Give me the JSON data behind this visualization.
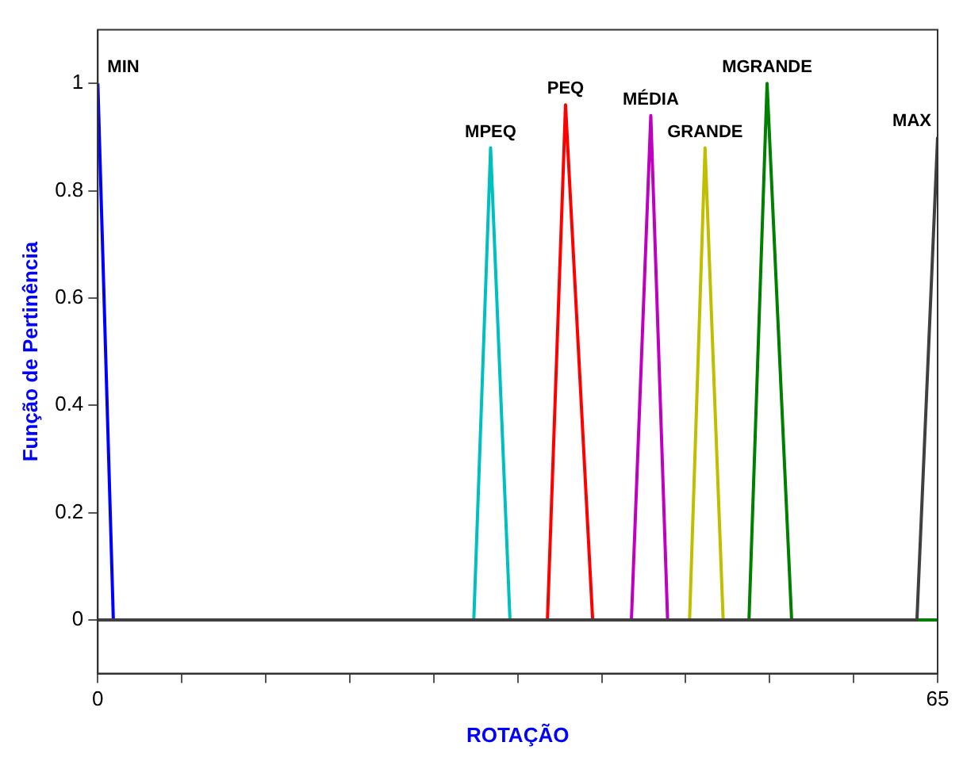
{
  "chart_data": {
    "type": "line",
    "xlabel": "ROTAÇÃO",
    "ylabel": "Função de Pertinência",
    "xlim": [
      0,
      65
    ],
    "ylim": [
      -0.1,
      1.1
    ],
    "xticks": [
      0,
      {
        "value": 6.5,
        "label": null
      },
      {
        "value": 13,
        "label": null
      },
      {
        "value": 19.5,
        "label": null
      },
      {
        "value": 26,
        "label": null
      },
      {
        "value": 32.5,
        "label": null
      },
      {
        "value": 39,
        "label": null
      },
      {
        "value": 45.5,
        "label": null
      },
      {
        "value": 52,
        "label": null
      },
      {
        "value": 58.5,
        "label": null
      },
      65
    ],
    "yticks": [
      0,
      0.2,
      0.4,
      0.6,
      0.8,
      1
    ],
    "grid": false,
    "legend": false,
    "marker": "none",
    "line_style": "solid",
    "series": [
      {
        "name": "MIN",
        "color": "#0000ff",
        "x": [
          0,
          1.2
        ],
        "values": [
          1,
          0
        ]
      },
      {
        "name": "MPEQ",
        "color": "#00bfbf",
        "x": [
          0,
          29.1,
          30.4,
          31.9,
          65
        ],
        "values": [
          0,
          0,
          0.88,
          0,
          0
        ]
      },
      {
        "name": "PEQ",
        "color": "#ff0000",
        "x": [
          0,
          34.8,
          36.2,
          38.3,
          65
        ],
        "values": [
          0,
          0,
          0.96,
          0,
          0
        ]
      },
      {
        "name": "MÉDIA",
        "color": "#bf00bf",
        "x": [
          0,
          41.3,
          42.8,
          44.1,
          65
        ],
        "values": [
          0,
          0,
          0.94,
          0,
          0
        ]
      },
      {
        "name": "GRANDE",
        "color": "#bfbf00",
        "x": [
          0,
          45.8,
          47.0,
          48.4,
          65
        ],
        "values": [
          0,
          0,
          0.88,
          0,
          0
        ]
      },
      {
        "name": "MGRANDE",
        "color": "#008000",
        "x": [
          0,
          50.4,
          51.8,
          53.7,
          65
        ],
        "values": [
          0,
          0,
          1,
          0,
          0
        ]
      },
      {
        "name": "MAX",
        "color": "#404040",
        "x": [
          0,
          63.4,
          65
        ],
        "values": [
          0,
          0,
          0.9
        ]
      }
    ]
  }
}
